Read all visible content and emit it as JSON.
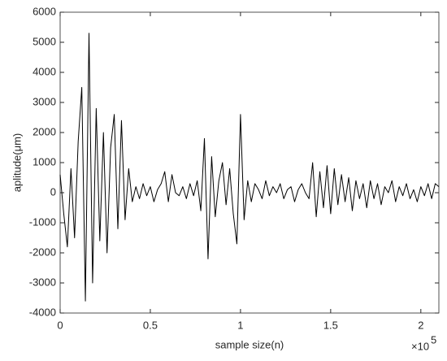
{
  "chart_data": {
    "type": "line",
    "xlabel": "sample size(n)",
    "ylabel": "aplitude(μm)",
    "x_scale_label": {
      "base": "×10",
      "exponent": "5"
    },
    "xlim": [
      0,
      2.1
    ],
    "xticks": [
      0,
      0.5,
      1,
      1.5,
      2
    ],
    "ylim": [
      -4000,
      6000
    ],
    "yticks": [
      -4000,
      -3000,
      -2000,
      -1000,
      0,
      1000,
      2000,
      3000,
      4000,
      5000,
      6000
    ],
    "grid": false,
    "x": [
      0,
      0.02,
      0.04,
      0.06,
      0.08,
      0.1,
      0.12,
      0.14,
      0.16,
      0.18,
      0.2,
      0.22,
      0.24,
      0.26,
      0.28,
      0.3,
      0.32,
      0.34,
      0.36,
      0.38,
      0.4,
      0.42,
      0.44,
      0.46,
      0.48,
      0.5,
      0.52,
      0.54,
      0.56,
      0.58,
      0.6,
      0.62,
      0.64,
      0.66,
      0.68,
      0.7,
      0.72,
      0.74,
      0.76,
      0.78,
      0.8,
      0.82,
      0.84,
      0.86,
      0.88,
      0.9,
      0.92,
      0.94,
      0.96,
      0.98,
      1,
      1.02,
      1.04,
      1.06,
      1.08,
      1.1,
      1.12,
      1.14,
      1.16,
      1.18,
      1.2,
      1.22,
      1.24,
      1.26,
      1.28,
      1.3,
      1.32,
      1.34,
      1.36,
      1.38,
      1.4,
      1.42,
      1.44,
      1.46,
      1.48,
      1.5,
      1.52,
      1.54,
      1.56,
      1.58,
      1.6,
      1.62,
      1.64,
      1.66,
      1.68,
      1.7,
      1.72,
      1.74,
      1.76,
      1.78,
      1.8,
      1.82,
      1.84,
      1.86,
      1.88,
      1.9,
      1.92,
      1.94,
      1.96,
      1.98,
      2,
      2.02,
      2.04,
      2.06,
      2.08,
      2.1
    ],
    "series": [
      {
        "color": "#000000",
        "values": [
          600,
          -700,
          -1800,
          800,
          -1500,
          1700,
          3500,
          -3600,
          5300,
          -3000,
          2800,
          -1600,
          2000,
          -2000,
          1500,
          2600,
          -1200,
          2400,
          -900,
          800,
          -300,
          200,
          -200,
          300,
          -100,
          200,
          -300,
          100,
          300,
          700,
          -300,
          600,
          0,
          -100,
          200,
          -200,
          300,
          -100,
          400,
          -600,
          1800,
          -2200,
          1200,
          -800,
          400,
          1000,
          -400,
          800,
          -700,
          -1700,
          2600,
          -900,
          400,
          -300,
          300,
          100,
          -200,
          400,
          -100,
          200,
          0,
          300,
          -200,
          100,
          200,
          -300,
          100,
          300,
          0,
          -200,
          1000,
          -800,
          700,
          -500,
          900,
          -700,
          800,
          -400,
          600,
          -300,
          500,
          -600,
          400,
          -200,
          300,
          -500,
          400,
          -200,
          300,
          -400,
          200,
          0,
          400,
          -300,
          200,
          -100,
          300,
          -200,
          100,
          -300,
          200,
          -100,
          300,
          -200,
          300,
          200
        ]
      }
    ]
  }
}
